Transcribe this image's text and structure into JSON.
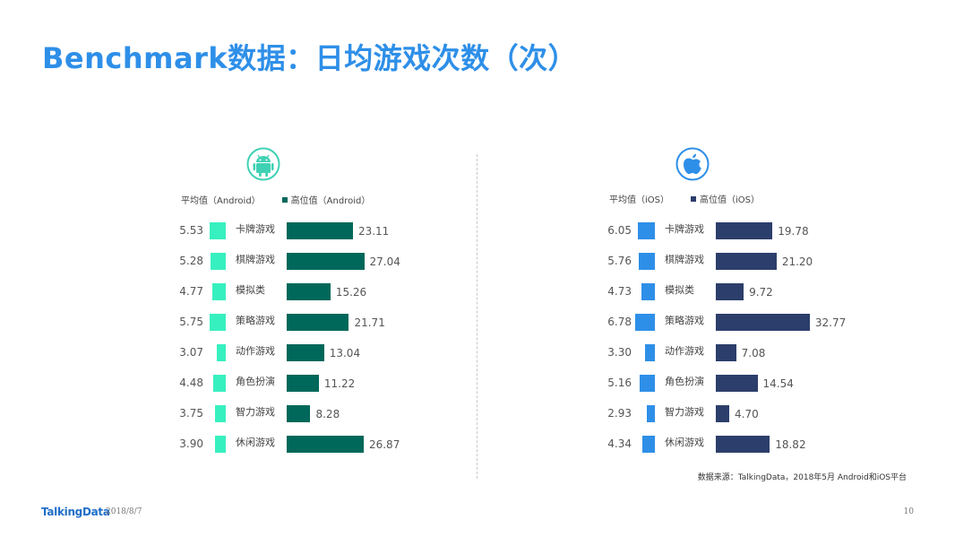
{
  "title": "Benchmark数据：日均游戏次数（次）",
  "source": "数据来源：TalkingData，2018年5月 Android和iOS平台",
  "footer": {
    "logo": "TalkingData",
    "date": "2018/8/7",
    "page": "10"
  },
  "colors": {
    "title": "#2e8fe8",
    "android_avg": "#37f0c0",
    "android_median": "#00685a",
    "ios_avg": "#2e8fe8",
    "ios_median": "#2c3e6b",
    "android_icon": "#3fd1b4",
    "ios_icon": "#2e8fe8"
  },
  "chart_data": [
    {
      "type": "bar",
      "platform": "Android",
      "icon": "android-icon",
      "categories": [
        "卡牌游戏",
        "棋牌游戏",
        "模拟类",
        "策略游戏",
        "动作游戏",
        "角色扮演",
        "智力游戏",
        "休闲游戏"
      ],
      "series": [
        {
          "name": "平均值（Android）",
          "values": [
            5.53,
            5.28,
            4.77,
            5.75,
            3.07,
            4.48,
            3.75,
            3.9
          ]
        },
        {
          "name": "高位值（Android）",
          "values": [
            23.11,
            27.04,
            15.26,
            21.71,
            13.04,
            11.22,
            8.28,
            26.87
          ]
        }
      ],
      "value_labels": {
        "avg": [
          "5.53",
          "5.28",
          "4.77",
          "5.75",
          "3.07",
          "4.48",
          "3.75",
          "3.90"
        ],
        "median": [
          "23.11",
          "27.04",
          "15.26",
          "21.71",
          "13.04",
          "11.22",
          "8.28",
          "26.87"
        ]
      }
    },
    {
      "type": "bar",
      "platform": "iOS",
      "icon": "apple-icon",
      "categories": [
        "卡牌游戏",
        "棋牌游戏",
        "模拟类",
        "策略游戏",
        "动作游戏",
        "角色扮演",
        "智力游戏",
        "休闲游戏"
      ],
      "series": [
        {
          "name": "平均值（iOS）",
          "values": [
            6.05,
            5.76,
            4.73,
            6.78,
            3.3,
            5.16,
            2.93,
            4.34
          ]
        },
        {
          "name": "高位值（iOS）",
          "values": [
            19.78,
            21.2,
            9.72,
            32.77,
            7.08,
            14.54,
            4.7,
            18.82
          ]
        }
      ],
      "value_labels": {
        "avg": [
          "6.05",
          "5.76",
          "4.73",
          "6.78",
          "3.30",
          "5.16",
          "2.93",
          "4.34"
        ],
        "median": [
          "19.78",
          "21.20",
          "9.72",
          "32.77",
          "7.08",
          "14.54",
          "4.70",
          "18.82"
        ]
      }
    }
  ]
}
